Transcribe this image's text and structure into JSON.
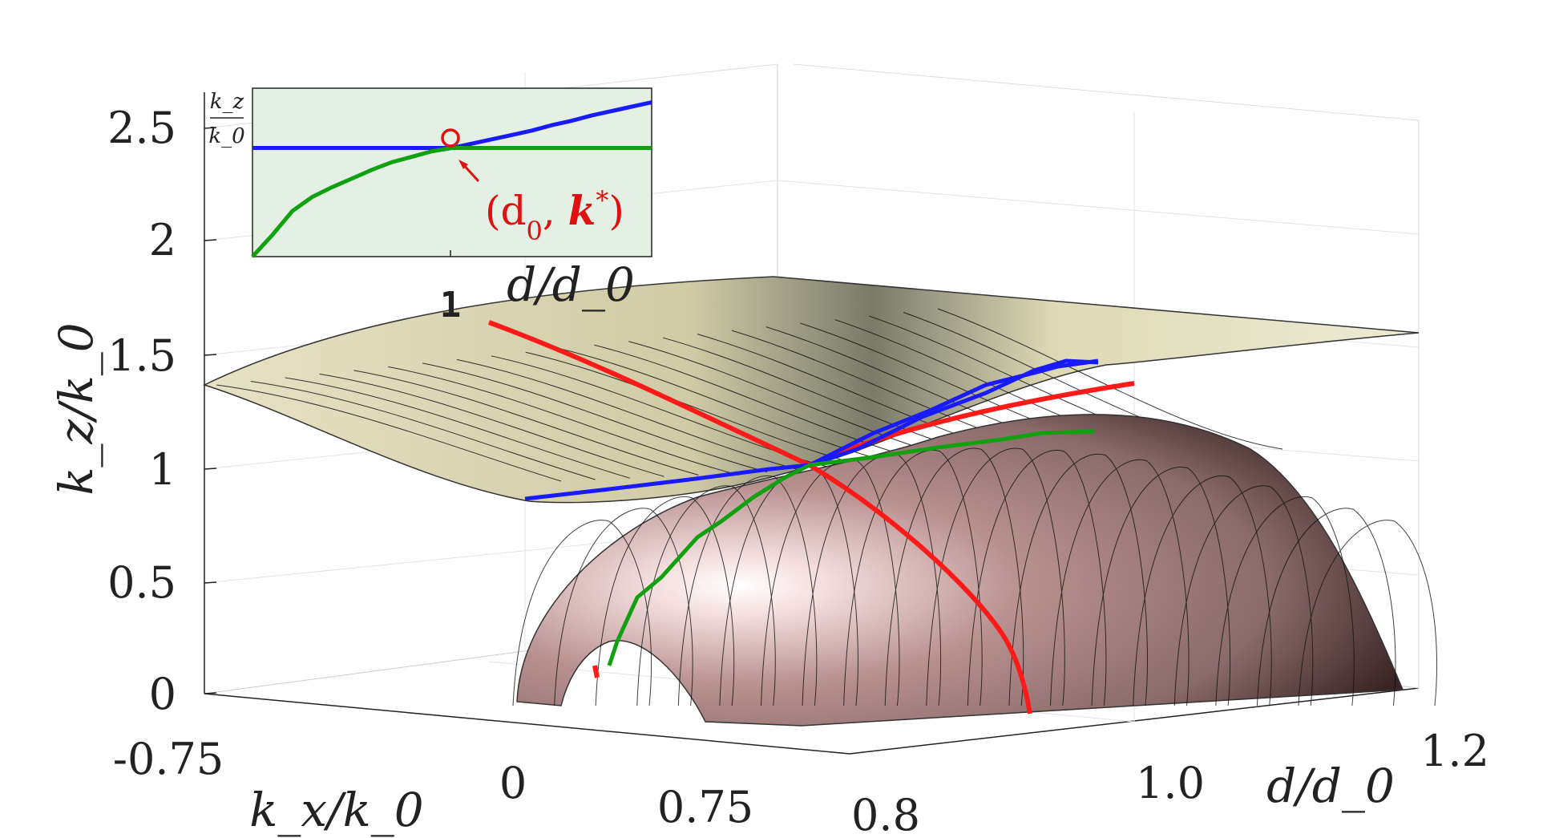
{
  "chart_data": [
    {
      "type": "surface",
      "title": "",
      "xlabel": "k_x/k_0",
      "ylabel": "d/d_0",
      "zlabel": "k_z/k_0",
      "xlim": [
        -0.75,
        0.75
      ],
      "ylim": [
        0.8,
        1.2
      ],
      "zlim": [
        0,
        2.5
      ],
      "x_ticks": [
        "-0.75",
        "0",
        "0.75"
      ],
      "y_ticks": [
        "0.8",
        "1.0",
        "1.2"
      ],
      "z_ticks": [
        "0",
        "0.5",
        "1",
        "1.5",
        "2",
        "2.5"
      ],
      "grid": true,
      "surfaces": [
        {
          "name": "upper band",
          "color": "#d9d6b0"
        },
        {
          "name": "lower band",
          "color": "#a88080"
        }
      ],
      "series": [
        {
          "name": "red curve",
          "color": "#ff1a1a",
          "description_points": [
            [
              -0.35,
              0.8,
              1.55
            ],
            [
              0,
              1.0,
              1.0
            ],
            [
              0.6,
              1.2,
              0.0
            ]
          ]
        },
        {
          "name": "blue curve",
          "color": "#1a1aff",
          "description_points": [
            [
              0,
              0.8,
              0.92
            ],
            [
              0,
              1.0,
              1.0
            ],
            [
              0,
              1.2,
              1.5
            ]
          ]
        },
        {
          "name": "green curve",
          "color": "#10a010",
          "description_points": [
            [
              0,
              0.8,
              0.1
            ],
            [
              0,
              1.0,
              1.0
            ],
            [
              0,
              1.2,
              1.05
            ]
          ]
        }
      ]
    },
    {
      "type": "line",
      "title": "",
      "xlabel": "d/d_0",
      "ylabel_num": "k_z",
      "ylabel_den": "k_0",
      "x_tick": "1",
      "background": "#e4f0e4",
      "x": [
        0.8,
        0.82,
        0.84,
        0.86,
        0.88,
        0.9,
        0.92,
        0.94,
        0.96,
        0.98,
        1.0,
        1.02,
        1.04,
        1.06,
        1.08,
        1.1,
        1.12,
        1.14,
        1.16,
        1.18,
        1.2
      ],
      "series": [
        {
          "name": "blue",
          "color": "#1a1aff",
          "values": [
            1.0,
            1.0,
            1.0,
            1.0,
            1.0,
            1.0,
            1.0,
            1.0,
            1.0,
            1.0,
            1.0,
            1.04,
            1.08,
            1.12,
            1.16,
            1.21,
            1.25,
            1.3,
            1.34,
            1.38,
            1.42
          ]
        },
        {
          "name": "green",
          "color": "#10a010",
          "values": [
            0.0,
            0.2,
            0.42,
            0.55,
            0.64,
            0.72,
            0.8,
            0.87,
            0.92,
            0.97,
            1.0,
            1.0,
            1.0,
            1.0,
            1.0,
            1.0,
            1.0,
            1.0,
            1.0,
            1.0,
            1.0
          ]
        }
      ],
      "annotation": {
        "text_open": "(d",
        "text_sub": "0",
        "text_comma": ", ",
        "text_k": "k",
        "text_star": "*",
        "text_close": ")",
        "color": "#e01010"
      }
    }
  ]
}
